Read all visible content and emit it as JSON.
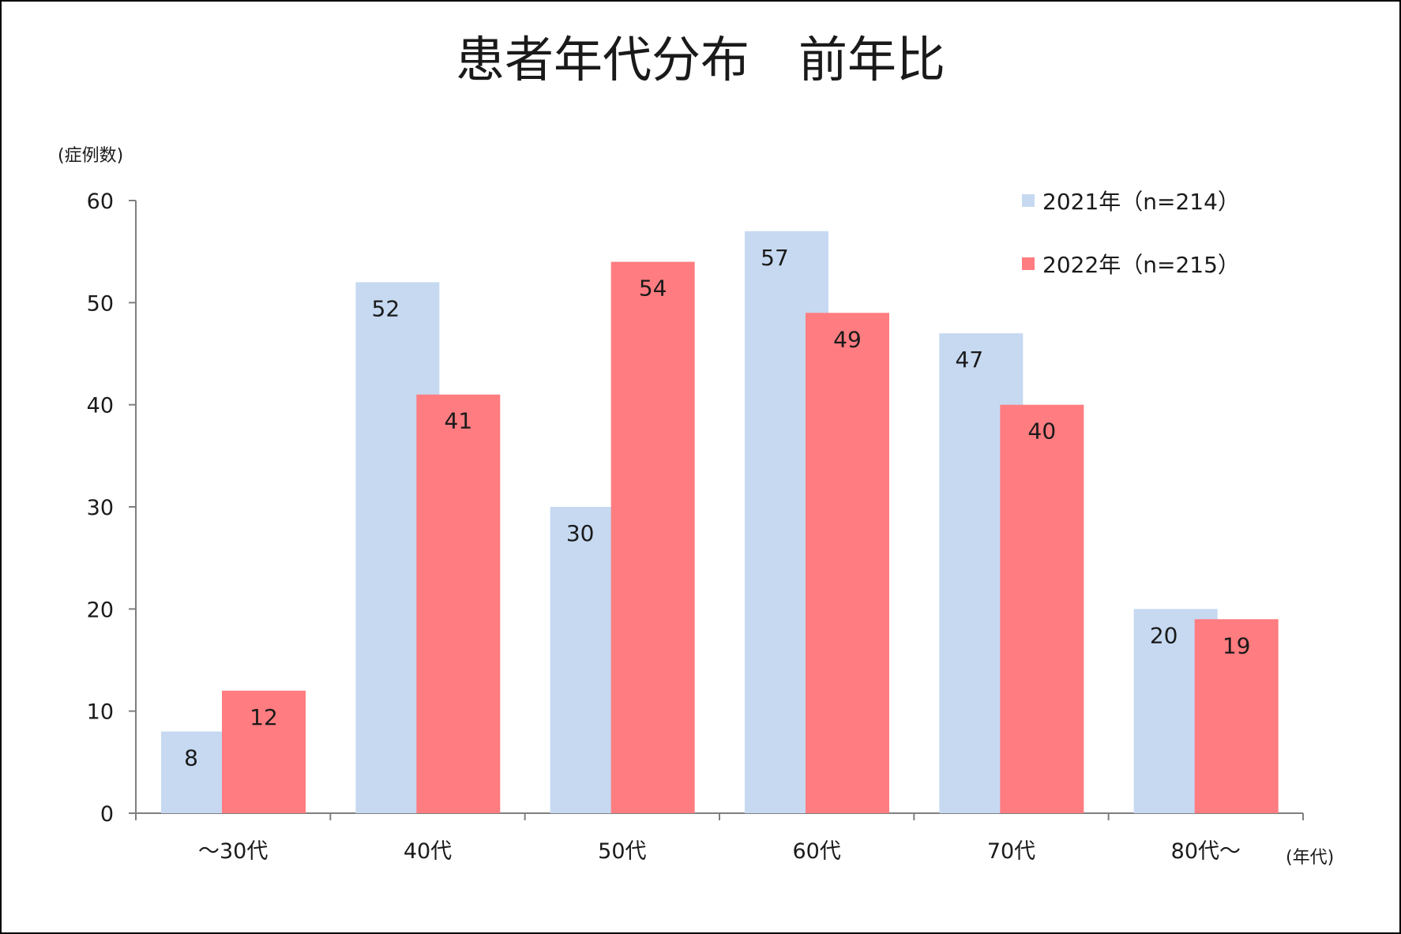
{
  "chart_data": {
    "type": "bar",
    "title": "患者年代分布　前年比",
    "ylabel": "(症例数)",
    "xlabel": "(年代)",
    "categories": [
      "～30代",
      "40代",
      "50代",
      "60代",
      "70代",
      "80代～"
    ],
    "series": [
      {
        "name": "2021年（n=214）",
        "values": [
          8,
          52,
          30,
          57,
          47,
          20
        ],
        "color": "#c6d9f1"
      },
      {
        "name": "2022年（n=215）",
        "values": [
          12,
          41,
          54,
          49,
          40,
          19
        ],
        "color": "#ff7c80"
      }
    ],
    "ylim": [
      0,
      60
    ],
    "yticks": [
      0,
      10,
      20,
      30,
      40,
      50,
      60
    ],
    "legend_position": "top-right",
    "grid": false
  }
}
